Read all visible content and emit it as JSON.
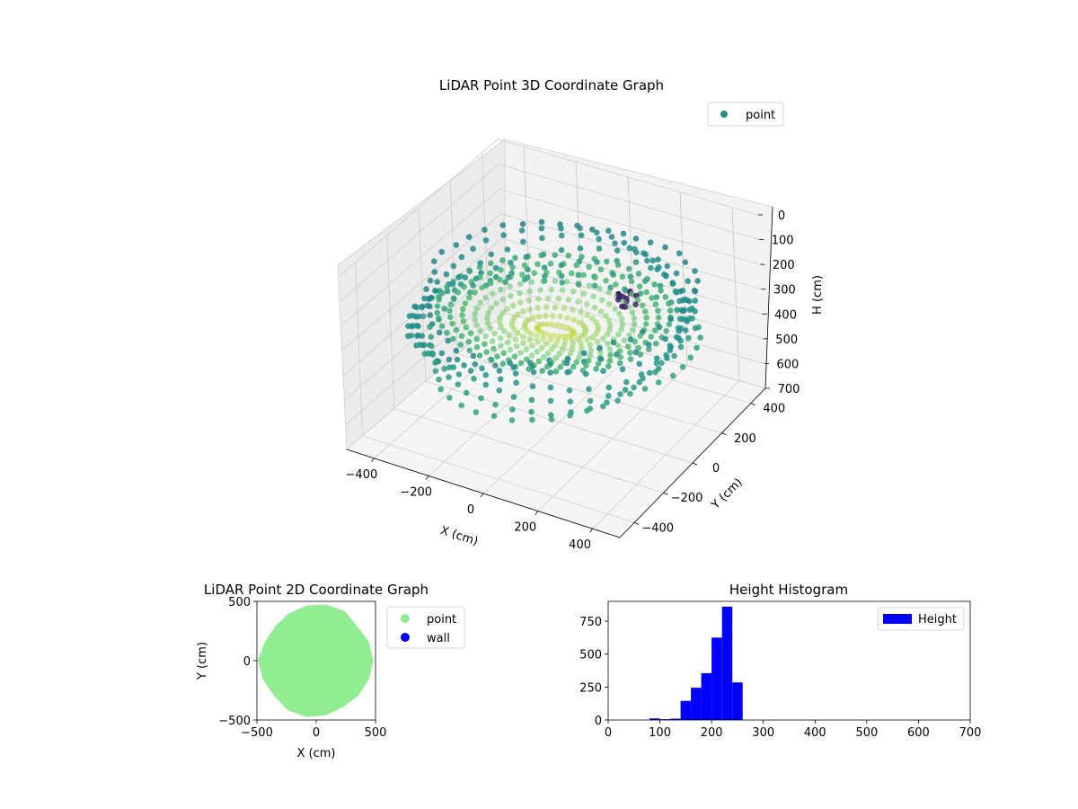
{
  "chart_data": [
    {
      "id": "lidar-3d",
      "type": "scatter",
      "title": "LiDAR Point 3D Coordinate Graph",
      "xlabel": "X (cm)",
      "ylabel": "Y (cm)",
      "zlabel": "H (cm)",
      "xlim": [
        -500,
        500
      ],
      "ylim": [
        -500,
        500
      ],
      "zlim": [
        700,
        0
      ],
      "x_ticks": [
        -400,
        -200,
        0,
        200,
        400
      ],
      "y_ticks": [
        -400,
        -200,
        0,
        200,
        400
      ],
      "z_ticks": [
        0,
        100,
        200,
        300,
        400,
        500,
        600,
        700
      ],
      "z_inverted": true,
      "grid": true,
      "legend": {
        "placement": "upper-right",
        "entries": [
          {
            "label": "point",
            "color": "#21918c"
          }
        ]
      },
      "colormap": "viridis",
      "series": [
        {
          "name": "point",
          "description_values": {
            "wall_ring": {
              "radius_range": [
                360,
                490
              ],
              "height_range": [
                150,
                430
              ]
            },
            "inner_cone": {
              "radius_range": [
                0,
                340
              ],
              "height_range": [
                200,
                330
              ]
            },
            "dark_cluster": {
              "x_range": [
                150,
                250
              ],
              "y_range": [
                80,
                160
              ],
              "height_range": [
                180,
                260
              ]
            }
          }
        }
      ]
    },
    {
      "id": "lidar-2d",
      "type": "scatter",
      "title": "LiDAR Point 2D Coordinate Graph",
      "xlabel": "X (cm)",
      "ylabel": "Y (cm)",
      "xlim": [
        -500,
        500
      ],
      "ylim": [
        -500,
        500
      ],
      "x_ticks": [
        -500,
        0,
        500
      ],
      "y_ticks": [
        -500,
        0,
        500
      ],
      "legend": {
        "placement": "outside-right",
        "entries": [
          {
            "label": "point",
            "color": "#90ee90"
          },
          {
            "label": "wall",
            "color": "#0000ff"
          }
        ]
      },
      "outline_polar": [
        [
          0,
          470
        ],
        [
          20,
          460
        ],
        [
          40,
          440
        ],
        [
          60,
          470
        ],
        [
          80,
          470
        ],
        [
          100,
          460
        ],
        [
          120,
          450
        ],
        [
          140,
          440
        ],
        [
          160,
          450
        ],
        [
          180,
          480
        ],
        [
          200,
          465
        ],
        [
          220,
          450
        ],
        [
          240,
          470
        ],
        [
          260,
          470
        ],
        [
          280,
          455
        ],
        [
          300,
          440
        ],
        [
          320,
          450
        ],
        [
          340,
          460
        ]
      ]
    },
    {
      "id": "height-hist",
      "type": "bar",
      "title": "Height Histogram",
      "xlabel": "",
      "ylabel": "",
      "xlim": [
        0,
        700
      ],
      "ylim": [
        0,
        900
      ],
      "x_ticks": [
        0,
        100,
        200,
        300,
        400,
        500,
        600,
        700
      ],
      "y_ticks": [
        0,
        250,
        500,
        750
      ],
      "color": "#0000ff",
      "legend": {
        "placement": "upper-right",
        "entries": [
          {
            "label": "Height",
            "color": "#0000ff"
          }
        ]
      },
      "bins": [
        {
          "x0": 80,
          "x1": 100,
          "value": 12
        },
        {
          "x0": 100,
          "x1": 120,
          "value": 6
        },
        {
          "x0": 120,
          "x1": 140,
          "value": 10
        },
        {
          "x0": 140,
          "x1": 160,
          "value": 145
        },
        {
          "x0": 160,
          "x1": 180,
          "value": 245
        },
        {
          "x0": 180,
          "x1": 200,
          "value": 355
        },
        {
          "x0": 200,
          "x1": 220,
          "value": 625
        },
        {
          "x0": 220,
          "x1": 240,
          "value": 860
        },
        {
          "x0": 240,
          "x1": 260,
          "value": 285
        }
      ]
    }
  ]
}
